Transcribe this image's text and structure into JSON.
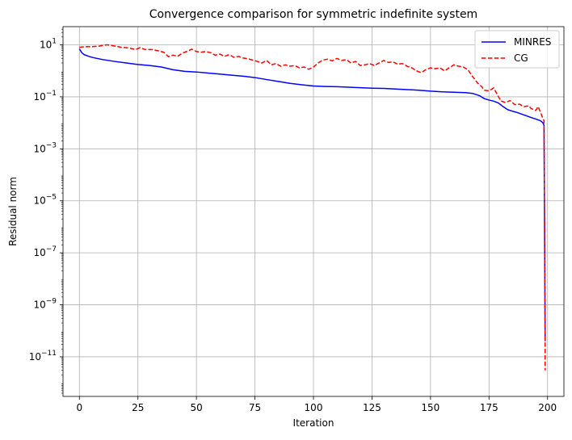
{
  "chart_data": {
    "type": "line",
    "title": "Convergence comparison for symmetric indefinite system",
    "xlabel": "Iteration",
    "ylabel": "Residual norm",
    "xscale": "linear",
    "yscale": "log",
    "xlim": [
      -7,
      207
    ],
    "ylim": [
      3e-13,
      50
    ],
    "xticks": [
      0,
      25,
      50,
      75,
      100,
      125,
      150,
      175,
      200
    ],
    "xtick_labels": [
      "0",
      "25",
      "50",
      "75",
      "100",
      "125",
      "150",
      "175",
      "200"
    ],
    "ytick_exponents": [
      1,
      -1,
      -3,
      -5,
      -7,
      -9,
      -11
    ],
    "grid": true,
    "legend_position": "top-right",
    "series": [
      {
        "name": "MINRES",
        "color": "#0000ff",
        "linestyle": "solid",
        "points": [
          [
            0,
            7
          ],
          [
            1,
            5
          ],
          [
            2,
            4.2
          ],
          [
            4,
            3.6
          ],
          [
            6,
            3.2
          ],
          [
            10,
            2.7
          ],
          [
            15,
            2.3
          ],
          [
            20,
            2.0
          ],
          [
            25,
            1.75
          ],
          [
            30,
            1.6
          ],
          [
            35,
            1.4
          ],
          [
            40,
            1.1
          ],
          [
            45,
            0.95
          ],
          [
            50,
            0.9
          ],
          [
            55,
            0.82
          ],
          [
            60,
            0.75
          ],
          [
            65,
            0.68
          ],
          [
            70,
            0.62
          ],
          [
            75,
            0.55
          ],
          [
            80,
            0.46
          ],
          [
            85,
            0.39
          ],
          [
            90,
            0.33
          ],
          [
            95,
            0.29
          ],
          [
            100,
            0.26
          ],
          [
            105,
            0.25
          ],
          [
            110,
            0.245
          ],
          [
            115,
            0.235
          ],
          [
            120,
            0.225
          ],
          [
            125,
            0.215
          ],
          [
            130,
            0.21
          ],
          [
            135,
            0.2
          ],
          [
            140,
            0.19
          ],
          [
            145,
            0.18
          ],
          [
            150,
            0.165
          ],
          [
            155,
            0.155
          ],
          [
            160,
            0.15
          ],
          [
            165,
            0.145
          ],
          [
            168,
            0.135
          ],
          [
            171,
            0.11
          ],
          [
            173,
            0.085
          ],
          [
            175,
            0.075
          ],
          [
            177,
            0.068
          ],
          [
            179,
            0.058
          ],
          [
            181,
            0.042
          ],
          [
            183,
            0.032
          ],
          [
            185,
            0.028
          ],
          [
            187,
            0.025
          ],
          [
            190,
            0.02
          ],
          [
            193,
            0.016
          ],
          [
            195,
            0.014
          ],
          [
            197,
            0.012
          ],
          [
            198,
            0.01
          ],
          [
            198.5,
            0.008
          ],
          [
            199,
            4e-11
          ]
        ]
      },
      {
        "name": "CG",
        "color": "#ff0000",
        "linestyle": "dashed",
        "points": [
          [
            0,
            8
          ],
          [
            2,
            8.4
          ],
          [
            5,
            8.5
          ],
          [
            8,
            8.8
          ],
          [
            10,
            9.5
          ],
          [
            12,
            10
          ],
          [
            15,
            9
          ],
          [
            18,
            8
          ],
          [
            21,
            7.6
          ],
          [
            24,
            6.6
          ],
          [
            26,
            7.8
          ],
          [
            28,
            6.6
          ],
          [
            31,
            6.6
          ],
          [
            34,
            5.8
          ],
          [
            36,
            5.2
          ],
          [
            38,
            3.5
          ],
          [
            40,
            4.0
          ],
          [
            42,
            3.6
          ],
          [
            44,
            4.8
          ],
          [
            46,
            5.6
          ],
          [
            48,
            6.8
          ],
          [
            50,
            5.5
          ],
          [
            52,
            5.2
          ],
          [
            54,
            5.5
          ],
          [
            56,
            5.0
          ],
          [
            58,
            4.0
          ],
          [
            60,
            4.4
          ],
          [
            62,
            3.6
          ],
          [
            64,
            4.2
          ],
          [
            66,
            3.3
          ],
          [
            68,
            3.6
          ],
          [
            70,
            3.1
          ],
          [
            72,
            2.9
          ],
          [
            74,
            2.6
          ],
          [
            76,
            2.3
          ],
          [
            78,
            2.0
          ],
          [
            80,
            2.5
          ],
          [
            82,
            1.7
          ],
          [
            84,
            1.9
          ],
          [
            86,
            1.5
          ],
          [
            88,
            1.7
          ],
          [
            90,
            1.5
          ],
          [
            92,
            1.6
          ],
          [
            94,
            1.3
          ],
          [
            96,
            1.4
          ],
          [
            98,
            1.15
          ],
          [
            100,
            1.4
          ],
          [
            102,
            2.0
          ],
          [
            104,
            2.6
          ],
          [
            106,
            2.8
          ],
          [
            108,
            2.4
          ],
          [
            110,
            3.0
          ],
          [
            112,
            2.5
          ],
          [
            114,
            2.7
          ],
          [
            116,
            2.0
          ],
          [
            118,
            2.3
          ],
          [
            120,
            1.6
          ],
          [
            122,
            1.7
          ],
          [
            124,
            1.9
          ],
          [
            126,
            1.6
          ],
          [
            128,
            2.0
          ],
          [
            130,
            2.5
          ],
          [
            132,
            2.1
          ],
          [
            134,
            2.2
          ],
          [
            136,
            1.8
          ],
          [
            138,
            1.9
          ],
          [
            140,
            1.5
          ],
          [
            142,
            1.3
          ],
          [
            144,
            1.0
          ],
          [
            146,
            0.85
          ],
          [
            148,
            1.1
          ],
          [
            150,
            1.3
          ],
          [
            152,
            1.2
          ],
          [
            154,
            1.3
          ],
          [
            156,
            1.0
          ],
          [
            158,
            1.3
          ],
          [
            160,
            1.7
          ],
          [
            162,
            1.5
          ],
          [
            164,
            1.4
          ],
          [
            166,
            1.1
          ],
          [
            168,
            0.6
          ],
          [
            170,
            0.35
          ],
          [
            172,
            0.24
          ],
          [
            173,
            0.18
          ],
          [
            175,
            0.17
          ],
          [
            177,
            0.22
          ],
          [
            178,
            0.15
          ],
          [
            180,
            0.07
          ],
          [
            182,
            0.06
          ],
          [
            184,
            0.072
          ],
          [
            186,
            0.05
          ],
          [
            188,
            0.052
          ],
          [
            190,
            0.042
          ],
          [
            192,
            0.045
          ],
          [
            193,
            0.035
          ],
          [
            195,
            0.03
          ],
          [
            196,
            0.042
          ],
          [
            197,
            0.025
          ],
          [
            198,
            0.015
          ],
          [
            198.5,
            0.012
          ],
          [
            199,
            3e-12
          ]
        ]
      }
    ]
  }
}
